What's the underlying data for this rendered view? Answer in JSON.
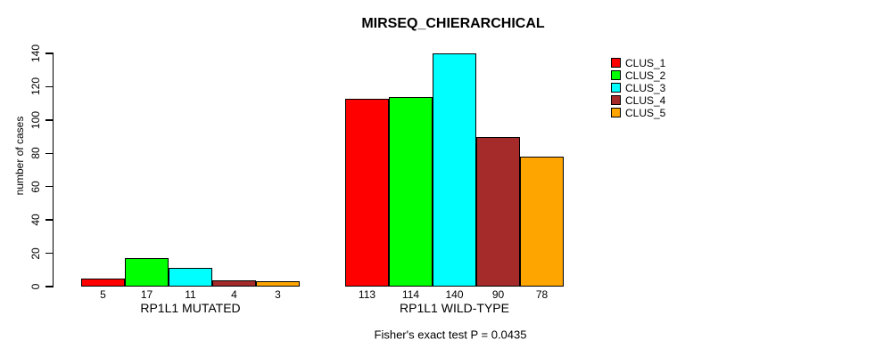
{
  "title": "MIRSEQ_CHIERARCHICAL",
  "footer": "Fisher's exact test P = 0.0435",
  "y_axis_label": "number of cases",
  "chart_data": {
    "type": "bar",
    "title": "MIRSEQ_CHIERARCHICAL",
    "ylabel": "number of cases",
    "xlabel": "",
    "ylim": [
      0,
      140
    ],
    "yticks": [
      0,
      20,
      40,
      60,
      80,
      100,
      120,
      140
    ],
    "grid": false,
    "legend_position": "right",
    "bar_value_labels_shown": true,
    "categories": [
      "RP1L1 MUTATED",
      "RP1L1 WILD-TYPE"
    ],
    "series": [
      {
        "name": "CLUS_1",
        "color": "#FF0000",
        "values": [
          5,
          113
        ]
      },
      {
        "name": "CLUS_2",
        "color": "#00FF00",
        "values": [
          17,
          114
        ]
      },
      {
        "name": "CLUS_3",
        "color": "#00FFFF",
        "values": [
          11,
          140
        ]
      },
      {
        "name": "CLUS_4",
        "color": "#A52A2A",
        "values": [
          4,
          90
        ]
      },
      {
        "name": "CLUS_5",
        "color": "#FFA500",
        "values": [
          3,
          78
        ]
      }
    ],
    "annotation": "Fisher's exact test P = 0.0435"
  }
}
